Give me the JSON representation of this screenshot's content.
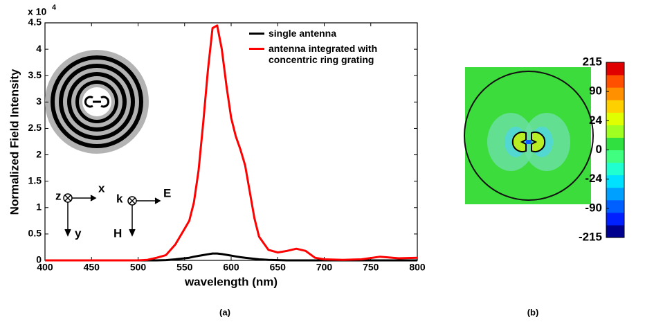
{
  "chart_data": [
    {
      "type": "line",
      "caption": "(a)",
      "xlabel": "wavelength (nm)",
      "ylabel": "Normalized Field Intensity",
      "y_multiplier": "x 10",
      "y_multiplier_exponent": "4",
      "x": [
        400,
        450,
        500,
        510,
        520,
        530,
        540,
        550,
        555,
        560,
        565,
        570,
        575,
        580,
        585,
        590,
        595,
        600,
        605,
        610,
        615,
        620,
        625,
        630,
        640,
        650,
        660,
        670,
        680,
        690,
        700,
        720,
        740,
        760,
        780,
        800
      ],
      "series": [
        {
          "name": "single antenna",
          "color": "#000000",
          "values": [
            0,
            0,
            0,
            0,
            0,
            0.005,
            0.02,
            0.04,
            0.05,
            0.07,
            0.085,
            0.1,
            0.115,
            0.13,
            0.13,
            0.12,
            0.105,
            0.09,
            0.075,
            0.06,
            0.05,
            0.04,
            0.03,
            0.02,
            0.01,
            0.005,
            0,
            0,
            0,
            0,
            0,
            0,
            0,
            0,
            0,
            0
          ]
        },
        {
          "name": "antenna integrated with concentric ring grating",
          "color": "#ff0000",
          "values": [
            0,
            0,
            0,
            0.01,
            0.05,
            0.1,
            0.3,
            0.6,
            0.75,
            1.1,
            1.7,
            2.6,
            3.6,
            4.4,
            4.45,
            4.0,
            3.3,
            2.7,
            2.35,
            2.1,
            1.8,
            1.3,
            0.8,
            0.45,
            0.2,
            0.15,
            0.18,
            0.22,
            0.18,
            0.05,
            0.02,
            0.01,
            0.02,
            0.07,
            0.04,
            0.05
          ]
        }
      ],
      "xlim": [
        400,
        800
      ],
      "xticks": [
        400,
        450,
        500,
        550,
        600,
        650,
        700,
        750,
        800
      ],
      "ylim": [
        0,
        4.5
      ],
      "yticks": [
        0,
        0.5,
        1,
        1.5,
        2,
        2.5,
        3,
        3.5,
        4,
        4.5
      ],
      "annotations": [
        "z",
        "x",
        "y",
        "k",
        "E",
        "H"
      ]
    },
    {
      "type": "heatmap",
      "caption": "(b)",
      "colorbar_ticks": [
        215,
        90,
        24,
        0,
        -24,
        -90,
        -215
      ]
    }
  ]
}
